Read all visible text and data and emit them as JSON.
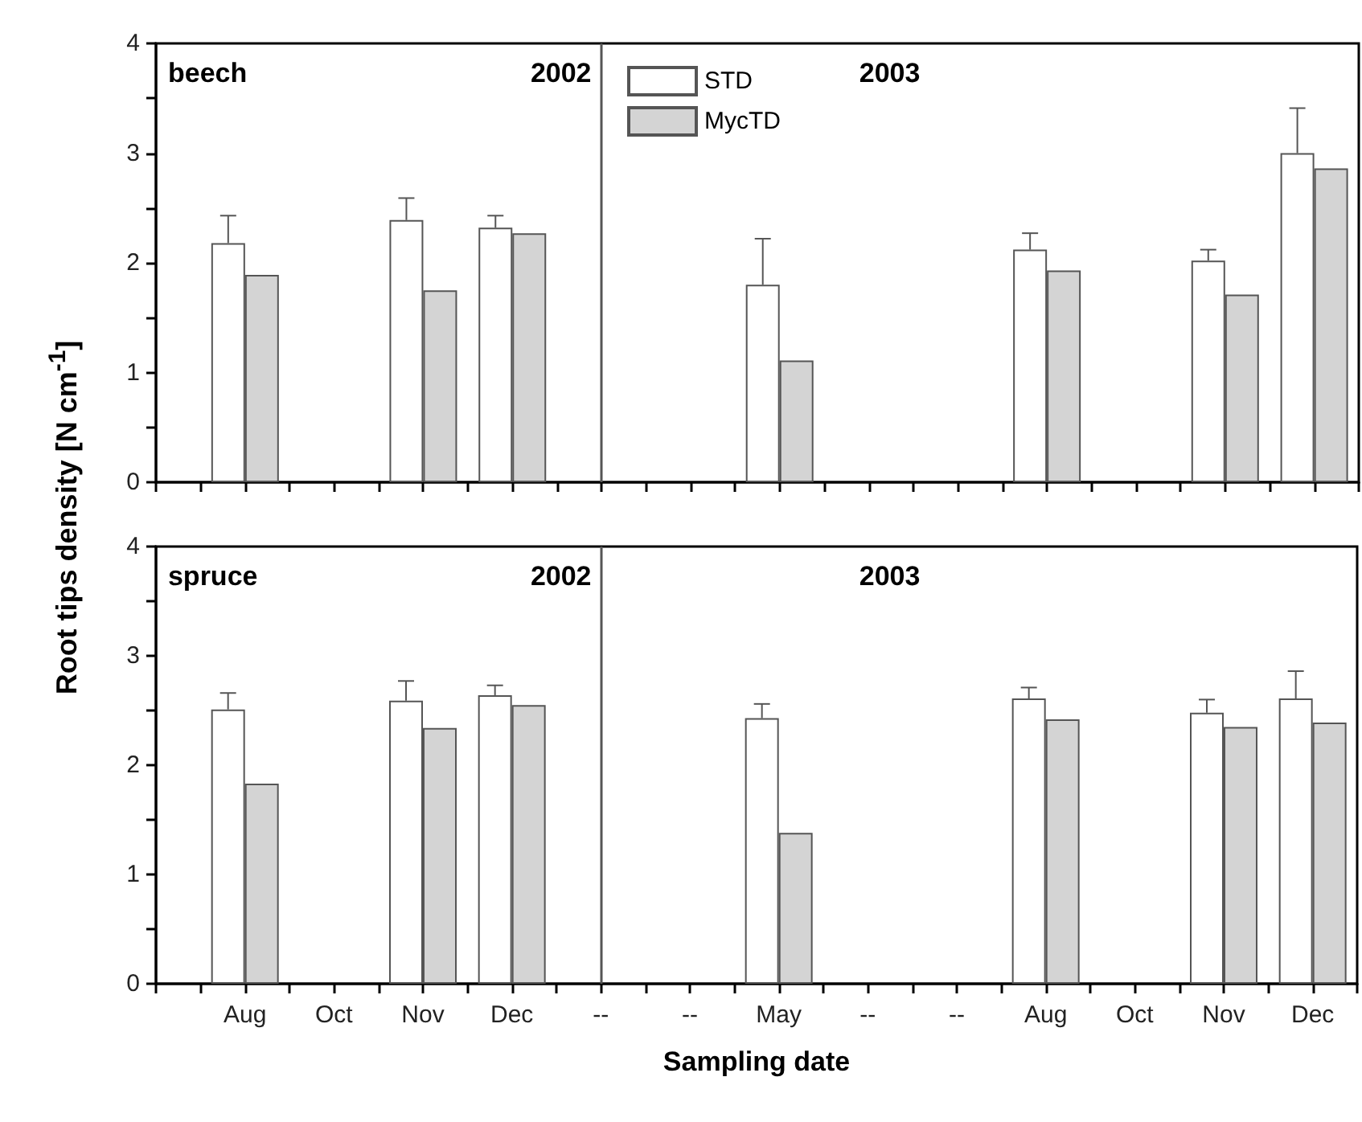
{
  "chart_data": [
    {
      "type": "bar",
      "ylabel": "Root tips density [N cm$^{-1}$]",
      "annotations": [
        "beech",
        "2002",
        "2003"
      ],
      "categories": [
        null,
        null,
        "Aug",
        null,
        "Oct",
        null,
        "Nov",
        null,
        "Dec",
        null,
        "--",
        null,
        "--",
        null,
        "May",
        null,
        "--",
        null,
        "--",
        null,
        "Aug",
        null,
        "Oct",
        null,
        "Nov",
        null,
        "Dec",
        null
      ],
      "ylim": [
        0,
        4
      ],
      "yticks": [
        0,
        {
          "value": 0.5,
          "label": null
        },
        1,
        {
          "value": 1.5,
          "label": null
        },
        2,
        {
          "value": 2.5,
          "label": null
        },
        3,
        {
          "value": 3.5,
          "label": null
        },
        4
      ],
      "tick_labels": "y",
      "legend": "top left",
      "grid": false,
      "ref_lines": [
        {
          "axis": "x",
          "value": "--",
          "color": "#555555"
        }
      ],
      "series": [
        {
          "name": "STD",
          "color": "#ffffff",
          "values": [
            null,
            null,
            2.18,
            null,
            null,
            null,
            2.39,
            null,
            2.32,
            null,
            null,
            null,
            null,
            null,
            1.8,
            null,
            null,
            null,
            null,
            null,
            2.12,
            null,
            null,
            null,
            2.02,
            null,
            3.0,
            null
          ],
          "errors": [
            null,
            null,
            [
              2.18,
              2.43
            ],
            null,
            null,
            null,
            [
              2.39,
              2.59
            ],
            null,
            [
              2.32,
              2.43
            ],
            null,
            null,
            null,
            null,
            null,
            [
              1.8,
              2.22
            ],
            null,
            null,
            null,
            null,
            null,
            [
              2.12,
              2.27
            ],
            null,
            null,
            null,
            [
              2.02,
              2.12
            ],
            null,
            [
              3.0,
              3.41
            ],
            null
          ]
        },
        {
          "name": "MycTD",
          "color": "#d4d4d4",
          "values": [
            null,
            null,
            1.89,
            null,
            null,
            null,
            1.75,
            null,
            2.27,
            null,
            null,
            null,
            null,
            null,
            1.11,
            null,
            null,
            null,
            null,
            null,
            1.93,
            null,
            null,
            null,
            1.71,
            null,
            2.86,
            null
          ]
        }
      ]
    },
    {
      "type": "bar",
      "xlabel": "Sampling date",
      "annotations": [
        "spruce",
        "2002",
        "2003"
      ],
      "categories": [
        null,
        null,
        "Aug",
        null,
        "Oct",
        null,
        "Nov",
        null,
        "Dec",
        null,
        "--",
        null,
        "--",
        null,
        "May",
        null,
        "--",
        null,
        "--",
        null,
        "Aug",
        null,
        "Oct",
        null,
        "Nov",
        null,
        "Dec",
        null
      ],
      "ylim": [
        0,
        4
      ],
      "yticks": [
        0,
        {
          "value": 0.5,
          "label": null
        },
        1,
        {
          "value": 1.5,
          "label": null
        },
        2,
        {
          "value": 2.5,
          "label": null
        },
        3,
        {
          "value": 3.5,
          "label": null
        },
        4
      ],
      "grid": false,
      "ref_lines": [
        {
          "axis": "x",
          "value": "--",
          "color": "#555555"
        }
      ],
      "series": [
        {
          "color": "#ffffff",
          "values": [
            null,
            null,
            2.51,
            null,
            null,
            null,
            2.59,
            null,
            2.64,
            null,
            null,
            null,
            null,
            null,
            2.43,
            null,
            null,
            null,
            null,
            null,
            2.61,
            null,
            null,
            null,
            2.48,
            null,
            2.61,
            null
          ],
          "errors": [
            null,
            null,
            [
              2.51,
              2.66
            ],
            null,
            null,
            null,
            [
              2.59,
              2.77
            ],
            null,
            [
              2.64,
              2.73
            ],
            null,
            null,
            null,
            null,
            null,
            [
              2.43,
              2.56
            ],
            null,
            null,
            null,
            null,
            null,
            [
              2.61,
              2.71
            ],
            null,
            null,
            null,
            [
              2.48,
              2.6
            ],
            null,
            [
              2.61,
              2.86
            ],
            null
          ]
        },
        {
          "color": "#d4d4d4",
          "values": [
            null,
            null,
            1.83,
            null,
            null,
            null,
            2.34,
            null,
            2.55,
            null,
            null,
            null,
            null,
            null,
            1.38,
            null,
            null,
            null,
            null,
            null,
            2.42,
            null,
            null,
            null,
            2.35,
            null,
            2.39,
            null
          ]
        }
      ]
    }
  ]
}
